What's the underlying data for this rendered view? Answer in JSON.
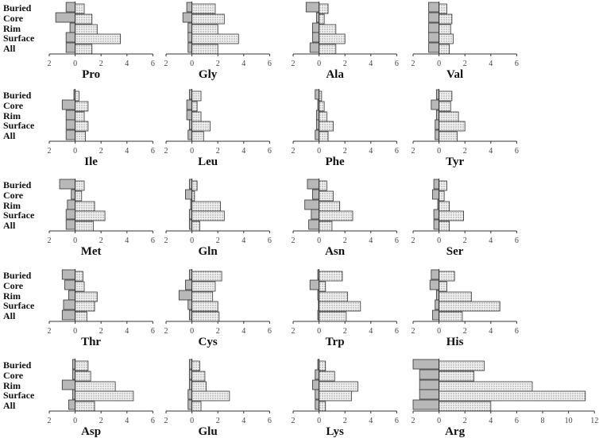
{
  "chart_data": [
    {
      "type": "bar",
      "title": "Pro",
      "categories": [
        "Buried",
        "Core",
        "Rim",
        "Surface",
        "All"
      ],
      "series": [
        {
          "color": "#b8b8b8",
          "values": [
            -0.7,
            -1.5,
            -0.4,
            -0.7,
            -0.7
          ]
        },
        {
          "color": "#f2f2f2",
          "hatch": "dots",
          "values": [
            0.7,
            1.3,
            1.7,
            3.5,
            1.3
          ]
        }
      ],
      "xlim": [
        -2,
        6
      ],
      "xticks": [
        {
          "value": -2,
          "label": "2"
        },
        0,
        2,
        4,
        6
      ]
    },
    {
      "type": "bar",
      "title": "Gly",
      "series": [
        {
          "color": "#b8b8b8",
          "values": [
            -0.4,
            -0.7,
            -0.3,
            -0.3,
            -0.3
          ]
        },
        {
          "color": "#f2f2f2",
          "hatch": "dots",
          "values": [
            1.8,
            2.5,
            2.0,
            3.6,
            2.0
          ]
        }
      ],
      "xlim": [
        -2,
        6
      ],
      "xticks": [
        {
          "value": -2,
          "label": "2"
        },
        0,
        2,
        4,
        6
      ]
    },
    {
      "type": "bar",
      "title": "Ala",
      "series": [
        {
          "color": "#b8b8b8",
          "values": [
            -1.0,
            -0.2,
            -0.5,
            -0.5,
            -0.7
          ]
        },
        {
          "color": "#f2f2f2",
          "hatch": "dots",
          "values": [
            0.7,
            0.4,
            1.3,
            2.0,
            1.3
          ]
        }
      ],
      "xlim": [
        -2,
        6
      ],
      "xticks": [
        {
          "value": -2,
          "label": "2"
        },
        0,
        2,
        4,
        6
      ]
    },
    {
      "type": "bar",
      "title": "Val",
      "series": [
        {
          "color": "#b8b8b8",
          "values": [
            -0.8,
            -0.8,
            -0.8,
            -0.8,
            -0.8
          ]
        },
        {
          "color": "#f2f2f2",
          "hatch": "dots",
          "values": [
            0.6,
            1.0,
            0.9,
            1.1,
            0.8
          ]
        }
      ],
      "xlim": [
        -2,
        6
      ],
      "xticks": [
        {
          "value": -2,
          "label": "2"
        },
        0,
        2,
        4,
        6
      ]
    },
    {
      "type": "bar",
      "title": "Ile",
      "categories": [
        "Buried",
        "Core",
        "Rim",
        "Surface",
        "All"
      ],
      "series": [
        {
          "color": "#b8b8b8",
          "values": [
            -0.1,
            -1.0,
            -0.7,
            -0.7,
            -0.7
          ]
        },
        {
          "color": "#f2f2f2",
          "hatch": "dots",
          "values": [
            0.3,
            1.0,
            0.7,
            1.0,
            0.8
          ]
        }
      ],
      "xlim": [
        -2,
        6
      ],
      "xticks": [
        {
          "value": -2,
          "label": "2"
        },
        0,
        2,
        4,
        6
      ]
    },
    {
      "type": "bar",
      "title": "Leu",
      "series": [
        {
          "color": "#b8b8b8",
          "values": [
            -0.2,
            -0.4,
            -0.4,
            -0.2,
            -0.3
          ]
        },
        {
          "color": "#f2f2f2",
          "hatch": "dots",
          "values": [
            0.7,
            0.4,
            0.7,
            1.4,
            0.9
          ]
        }
      ],
      "xlim": [
        -2,
        6
      ],
      "xticks": [
        {
          "value": -2,
          "label": "2"
        },
        0,
        2,
        4,
        6
      ]
    },
    {
      "type": "bar",
      "title": "Phe",
      "series": [
        {
          "color": "#b8b8b8",
          "values": [
            -0.3,
            -0.1,
            -0.2,
            -0.2,
            -0.3
          ]
        },
        {
          "color": "#f2f2f2",
          "hatch": "dots",
          "values": [
            0.2,
            0.4,
            0.6,
            1.1,
            0.7
          ]
        }
      ],
      "xlim": [
        -2,
        6
      ],
      "xticks": [
        {
          "value": -2,
          "label": "2"
        },
        0,
        2,
        4,
        6
      ]
    },
    {
      "type": "bar",
      "title": "Tyr",
      "series": [
        {
          "color": "#b8b8b8",
          "values": [
            -0.2,
            -0.6,
            -0.2,
            -0.3,
            -0.3
          ]
        },
        {
          "color": "#f2f2f2",
          "hatch": "dots",
          "values": [
            1.0,
            0.9,
            1.5,
            2.0,
            1.4
          ]
        }
      ],
      "xlim": [
        -2,
        6
      ],
      "xticks": [
        {
          "value": -2,
          "label": "2"
        },
        0,
        2,
        4,
        6
      ]
    },
    {
      "type": "bar",
      "title": "Met",
      "categories": [
        "Buried",
        "Core",
        "Rim",
        "Surface",
        "All"
      ],
      "series": [
        {
          "color": "#b8b8b8",
          "values": [
            -1.2,
            -0.3,
            -0.6,
            -0.7,
            -0.7
          ]
        },
        {
          "color": "#f2f2f2",
          "hatch": "dots",
          "values": [
            0.7,
            0.5,
            1.5,
            2.3,
            1.4
          ]
        }
      ],
      "xlim": [
        -2,
        6
      ],
      "xticks": [
        {
          "value": -2,
          "label": "2"
        },
        0,
        2,
        4,
        6
      ]
    },
    {
      "type": "bar",
      "title": "Gln",
      "series": [
        {
          "color": "#b8b8b8",
          "values": [
            -0.2,
            -0.5,
            -0.1,
            -0.2,
            -0.2
          ]
        },
        {
          "color": "#f2f2f2",
          "hatch": "dots",
          "values": [
            0.4,
            0.2,
            2.2,
            2.5,
            0.6
          ]
        }
      ],
      "xlim": [
        -2,
        6
      ],
      "xticks": [
        {
          "value": -2,
          "label": "2"
        },
        0,
        2,
        4,
        6
      ]
    },
    {
      "type": "bar",
      "title": "Asn",
      "series": [
        {
          "color": "#b8b8b8",
          "values": [
            -0.9,
            -0.5,
            -1.1,
            -0.6,
            -0.8
          ]
        },
        {
          "color": "#f2f2f2",
          "hatch": "dots",
          "values": [
            0.6,
            1.1,
            1.6,
            2.6,
            1.0
          ]
        }
      ],
      "xlim": [
        -2,
        6
      ],
      "xticks": [
        {
          "value": -2,
          "label": "2"
        },
        0,
        2,
        4,
        6
      ]
    },
    {
      "type": "bar",
      "title": "Ser",
      "series": [
        {
          "color": "#b8b8b8",
          "values": [
            -0.4,
            -0.5,
            -0.1,
            -0.4,
            -0.4
          ]
        },
        {
          "color": "#f2f2f2",
          "hatch": "dots",
          "values": [
            0.6,
            0.4,
            0.8,
            1.9,
            0.8
          ]
        }
      ],
      "xlim": [
        -2,
        6
      ],
      "xticks": [
        {
          "value": -2,
          "label": "2"
        },
        0,
        2,
        4,
        6
      ]
    },
    {
      "type": "bar",
      "title": "Thr",
      "categories": [
        "Buried",
        "Core",
        "Rim",
        "Surface",
        "All"
      ],
      "series": [
        {
          "color": "#b8b8b8",
          "values": [
            -1.0,
            -0.8,
            -0.5,
            -0.9,
            -1.0
          ]
        },
        {
          "color": "#f2f2f2",
          "hatch": "dots",
          "values": [
            0.6,
            0.7,
            1.7,
            1.5,
            0.9
          ]
        }
      ],
      "xlim": [
        -2,
        6
      ],
      "xticks": [
        {
          "value": -2,
          "label": "2"
        },
        0,
        2,
        4,
        6
      ]
    },
    {
      "type": "bar",
      "title": "Cys",
      "series": [
        {
          "color": "#b8b8b8",
          "values": [
            -0.2,
            -0.5,
            -1.0,
            -0.3,
            -0.2
          ]
        },
        {
          "color": "#f2f2f2",
          "hatch": "dots",
          "values": [
            2.3,
            1.8,
            1.6,
            2.0,
            2.1
          ]
        }
      ],
      "xlim": [
        -2,
        6
      ],
      "xticks": [
        {
          "value": -2,
          "label": "2"
        },
        0,
        2,
        4,
        6
      ]
    },
    {
      "type": "bar",
      "title": "Trp",
      "series": [
        {
          "color": "#b8b8b8",
          "values": [
            -0.1,
            -0.7,
            -0.1,
            -0.05,
            -0.1
          ]
        },
        {
          "color": "#f2f2f2",
          "hatch": "dots",
          "values": [
            1.8,
            0.5,
            2.2,
            3.2,
            2.1
          ]
        }
      ],
      "xlim": [
        -2,
        6
      ],
      "xticks": [
        {
          "value": -2,
          "label": "2"
        },
        0,
        2,
        4,
        6
      ]
    },
    {
      "type": "bar",
      "title": "His",
      "series": [
        {
          "color": "#b8b8b8",
          "values": [
            -0.6,
            -0.7,
            -0.2,
            -0.3,
            -0.5
          ]
        },
        {
          "color": "#f2f2f2",
          "hatch": "dots",
          "values": [
            1.2,
            0.6,
            2.5,
            4.7,
            1.8
          ]
        }
      ],
      "xlim": [
        -2,
        6
      ],
      "xticks": [
        {
          "value": -2,
          "label": "2"
        },
        0,
        2,
        4,
        6
      ]
    },
    {
      "type": "bar",
      "title": "Asp",
      "categories": [
        "Buried",
        "Core",
        "Rim",
        "Surface",
        "All"
      ],
      "series": [
        {
          "color": "#b8b8b8",
          "values": [
            -0.2,
            -0.2,
            -1.0,
            -0.2,
            -0.5
          ]
        },
        {
          "color": "#f2f2f2",
          "hatch": "dots",
          "values": [
            1.0,
            1.2,
            3.1,
            4.5,
            1.5
          ]
        }
      ],
      "xlim": [
        -2,
        6
      ],
      "xticks": [
        {
          "value": -2,
          "label": "2"
        },
        0,
        2,
        4,
        6
      ]
    },
    {
      "type": "bar",
      "title": "Glu",
      "series": [
        {
          "color": "#b8b8b8",
          "values": [
            -0.2,
            -0.2,
            -0.2,
            -0.3,
            -0.3
          ]
        },
        {
          "color": "#f2f2f2",
          "hatch": "dots",
          "values": [
            0.6,
            1.0,
            1.1,
            2.9,
            0.7
          ]
        }
      ],
      "xlim": [
        -2,
        6
      ],
      "xticks": [
        {
          "value": -2,
          "label": "2"
        },
        0,
        2,
        4,
        6
      ]
    },
    {
      "type": "bar",
      "title": "Lys",
      "series": [
        {
          "color": "#b8b8b8",
          "values": [
            -0.1,
            -0.3,
            -0.5,
            -0.3,
            -0.3
          ]
        },
        {
          "color": "#f2f2f2",
          "hatch": "dots",
          "values": [
            0.5,
            1.2,
            3.0,
            2.5,
            0.5
          ]
        }
      ],
      "xlim": [
        -2,
        6
      ],
      "xticks": [
        {
          "value": -2,
          "label": "2"
        },
        0,
        2,
        4,
        6
      ]
    },
    {
      "type": "bar",
      "title": "Arg",
      "series": [
        {
          "color": "#b8b8b8",
          "values": [
            -2.0,
            -1.5,
            -1.5,
            -1.5,
            -2.0
          ]
        },
        {
          "color": "#f2f2f2",
          "hatch": "dots",
          "values": [
            3.5,
            2.7,
            7.2,
            11.3,
            4.0
          ]
        }
      ],
      "xlim": [
        -2,
        12
      ],
      "xticks": [
        {
          "value": -2,
          "label": "2"
        },
        0,
        2,
        4,
        6,
        8,
        10,
        12
      ]
    }
  ]
}
